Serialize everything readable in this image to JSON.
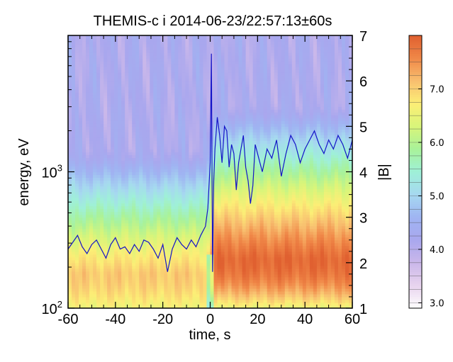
{
  "chart_data": {
    "type": "heatmap",
    "title": "THEMIS-c i 2014-06-23/22:57:13±60s",
    "xlabel": "time, s",
    "ylabel": "energy, eV",
    "y2label": "|B|",
    "x_ticks": [
      "-60",
      "-40",
      "-20",
      "0",
      "20",
      "40",
      "60"
    ],
    "xlim": [
      -60,
      60
    ],
    "y_ticks": [
      {
        "base": "10",
        "exp": "2"
      },
      {
        "base": "10",
        "exp": "3"
      }
    ],
    "y_scale": "log",
    "ylim": [
      100,
      10000
    ],
    "y2_ticks": [
      "1",
      "2",
      "3",
      "4",
      "5",
      "6",
      "7"
    ],
    "y2lim": [
      1,
      7
    ],
    "colorbar": {
      "ticks": [
        "3.0",
        "4.0",
        "5.0",
        "6.0",
        "7.0"
      ],
      "range": [
        2.9,
        8.0
      ],
      "colors": [
        "#ffffff",
        "#e8d4ee",
        "#cbb8ea",
        "#a9a7ee",
        "#9fb4f2",
        "#a6d8f0",
        "#9ff0d8",
        "#a8f29a",
        "#d8f57a",
        "#fcee76",
        "#f8c070",
        "#f08848",
        "#e06030"
      ]
    },
    "spectrogram": {
      "description_bands_eV_to_log10_flux": [
        {
          "t_range": [
            -60,
            0
          ],
          "peak_energy": 180,
          "peak_level": 7.05
        },
        {
          "t_range": [
            0,
            60
          ],
          "peak_energy": 220,
          "peak_level": 7.9
        }
      ]
    },
    "series": [
      {
        "name": "|B|",
        "axis": "right",
        "color": "#1414c8",
        "x": [
          -60,
          -58,
          -56,
          -54,
          -52,
          -50,
          -48,
          -46,
          -44,
          -42,
          -40,
          -38,
          -36,
          -34,
          -32,
          -30,
          -28,
          -26,
          -24,
          -22,
          -20,
          -18,
          -16,
          -14,
          -12,
          -10,
          -8,
          -6,
          -4,
          -2,
          -1,
          0,
          0.5,
          1,
          1.5,
          2,
          3,
          4,
          5,
          6,
          7,
          8,
          9,
          10,
          11,
          12,
          13,
          14,
          15,
          16,
          17,
          18,
          19,
          20,
          22,
          24,
          26,
          28,
          30,
          32,
          34,
          36,
          38,
          40,
          42,
          44,
          46,
          48,
          50,
          52,
          54,
          56,
          58,
          60
        ],
        "values": [
          2.3,
          2.45,
          2.6,
          2.35,
          2.2,
          2.4,
          2.5,
          2.3,
          2.1,
          2.4,
          2.55,
          2.3,
          2.35,
          2.2,
          2.4,
          2.25,
          2.5,
          2.45,
          2.3,
          2.1,
          2.4,
          1.8,
          2.3,
          2.55,
          2.4,
          2.3,
          2.5,
          2.35,
          2.6,
          2.8,
          3.2,
          4.2,
          6.6,
          1.8,
          3.8,
          4.5,
          5.2,
          4.8,
          4.2,
          5.0,
          4.9,
          4.1,
          4.6,
          4.4,
          3.6,
          4.2,
          4.5,
          4.8,
          4.1,
          3.8,
          3.3,
          3.7,
          4.6,
          4.4,
          4.0,
          4.5,
          4.3,
          4.7,
          3.9,
          4.4,
          4.8,
          4.6,
          4.2,
          4.5,
          4.7,
          4.9,
          4.6,
          4.4,
          4.7,
          4.5,
          4.8,
          4.6,
          4.3,
          4.7
        ]
      }
    ]
  }
}
